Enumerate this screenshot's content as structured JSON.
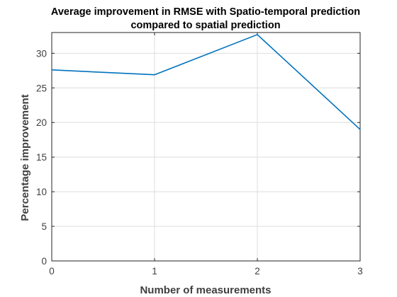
{
  "chart_data": {
    "type": "line",
    "title": [
      "Average improvement in RMSE with Spatio-temporal prediction",
      "compared to spatial prediction"
    ],
    "xlabel": "Number of measurements",
    "ylabel": "Percentage improvement",
    "xlim": [
      0,
      3
    ],
    "ylim": [
      0,
      33
    ],
    "xticks": [
      0,
      1,
      2,
      3
    ],
    "yticks": [
      0,
      5,
      10,
      15,
      20,
      25,
      30
    ],
    "grid": true,
    "series": [
      {
        "color": "#0072bd",
        "x": [
          0,
          1,
          2,
          3
        ],
        "y": [
          27.6,
          26.9,
          32.7,
          19.0
        ]
      }
    ]
  }
}
